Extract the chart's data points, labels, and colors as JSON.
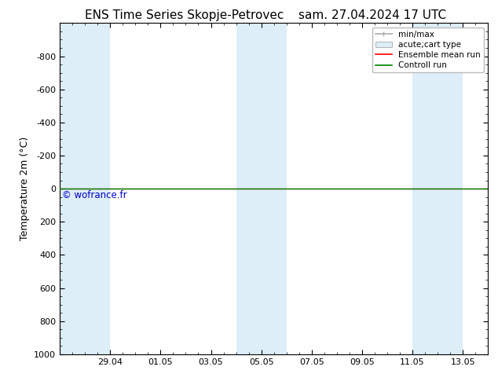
{
  "title_left": "ENS Time Series Skopje-Petrovec",
  "title_right": "sam. 27.04.2024 17 UTC",
  "ylabel": "Temperature 2m (°C)",
  "ylim_bottom": 1000,
  "ylim_top": -1000,
  "yticks": [
    -800,
    -600,
    -400,
    -200,
    0,
    200,
    400,
    600,
    800,
    1000
  ],
  "background_color": "#ffffff",
  "plot_bg_color": "#ffffff",
  "shaded_band_color": "#ddeef8",
  "xtick_labels": [
    "29.04",
    "01.05",
    "03.05",
    "05.05",
    "07.05",
    "09.05",
    "11.05",
    "13.05"
  ],
  "xmin": 0,
  "xmax": 17,
  "band_ranges": [
    [
      0,
      2
    ],
    [
      7,
      9
    ],
    [
      14,
      16
    ]
  ],
  "green_line_y": 0,
  "red_line_y": 0,
  "copyright_text": "© wofrance.fr",
  "copyright_color": "#0000cc",
  "legend_entries": [
    "min/max",
    "acute;cart type",
    "Ensemble mean run",
    "Controll run"
  ],
  "legend_minmax_color": "#aaaaaa",
  "legend_acute_color": "#ddeef8",
  "legend_ens_color": "#ff0000",
  "legend_ctrl_color": "#008000",
  "title_fontsize": 11,
  "axis_label_fontsize": 9,
  "tick_fontsize": 8,
  "legend_fontsize": 7.5
}
